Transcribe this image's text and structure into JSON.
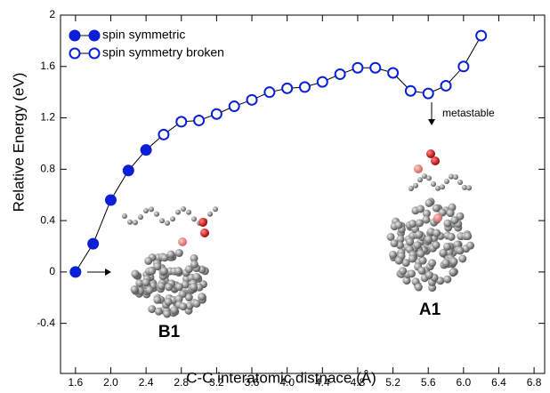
{
  "chart_data": {
    "type": "line",
    "x_label": "C-C interatomic distnace (Å)",
    "y_label": "Relative Energy (eV)",
    "series": [
      {
        "name": "spin symmetric",
        "color": "#0a1fd6",
        "filled": true,
        "x": [
          1.6,
          1.8,
          2.0,
          2.2,
          2.4
        ],
        "values": [
          0,
          0.22,
          0.56,
          0.79,
          0.95
        ]
      },
      {
        "name": "spin symmetry broken",
        "color": "#0a1fd6",
        "filled": false,
        "x": [
          2.6,
          2.8,
          3.0,
          3.2,
          3.4,
          3.6,
          3.8,
          4.0,
          4.2,
          4.4,
          4.6,
          4.8,
          5.0,
          5.2,
          5.4,
          5.6,
          5.8,
          6.0,
          6.2
        ],
        "values": [
          1.07,
          1.17,
          1.18,
          1.23,
          1.29,
          1.34,
          1.4,
          1.43,
          1.44,
          1.48,
          1.54,
          1.59,
          1.59,
          1.55,
          1.41,
          1.39,
          1.45,
          1.6,
          1.84
        ]
      }
    ],
    "xlim": [
      1.43,
      6.92
    ],
    "ylim": [
      -0.79,
      2
    ],
    "xticks": [
      1.6,
      {
        "value": 2,
        "label": "2.0"
      },
      2.4,
      2.8,
      3.2,
      3.6,
      {
        "value": 4,
        "label": "4.0"
      },
      4.4,
      4.8,
      5.2,
      5.6,
      {
        "value": 6,
        "label": "6.0"
      },
      6.4,
      6.8
    ],
    "yticks": [
      -0.4,
      0,
      0.4,
      0.8,
      1.2,
      1.6,
      2
    ],
    "legend": "upper left",
    "annotations": {
      "metastable": "metastable",
      "b1": "B1",
      "a1": "A1"
    }
  }
}
